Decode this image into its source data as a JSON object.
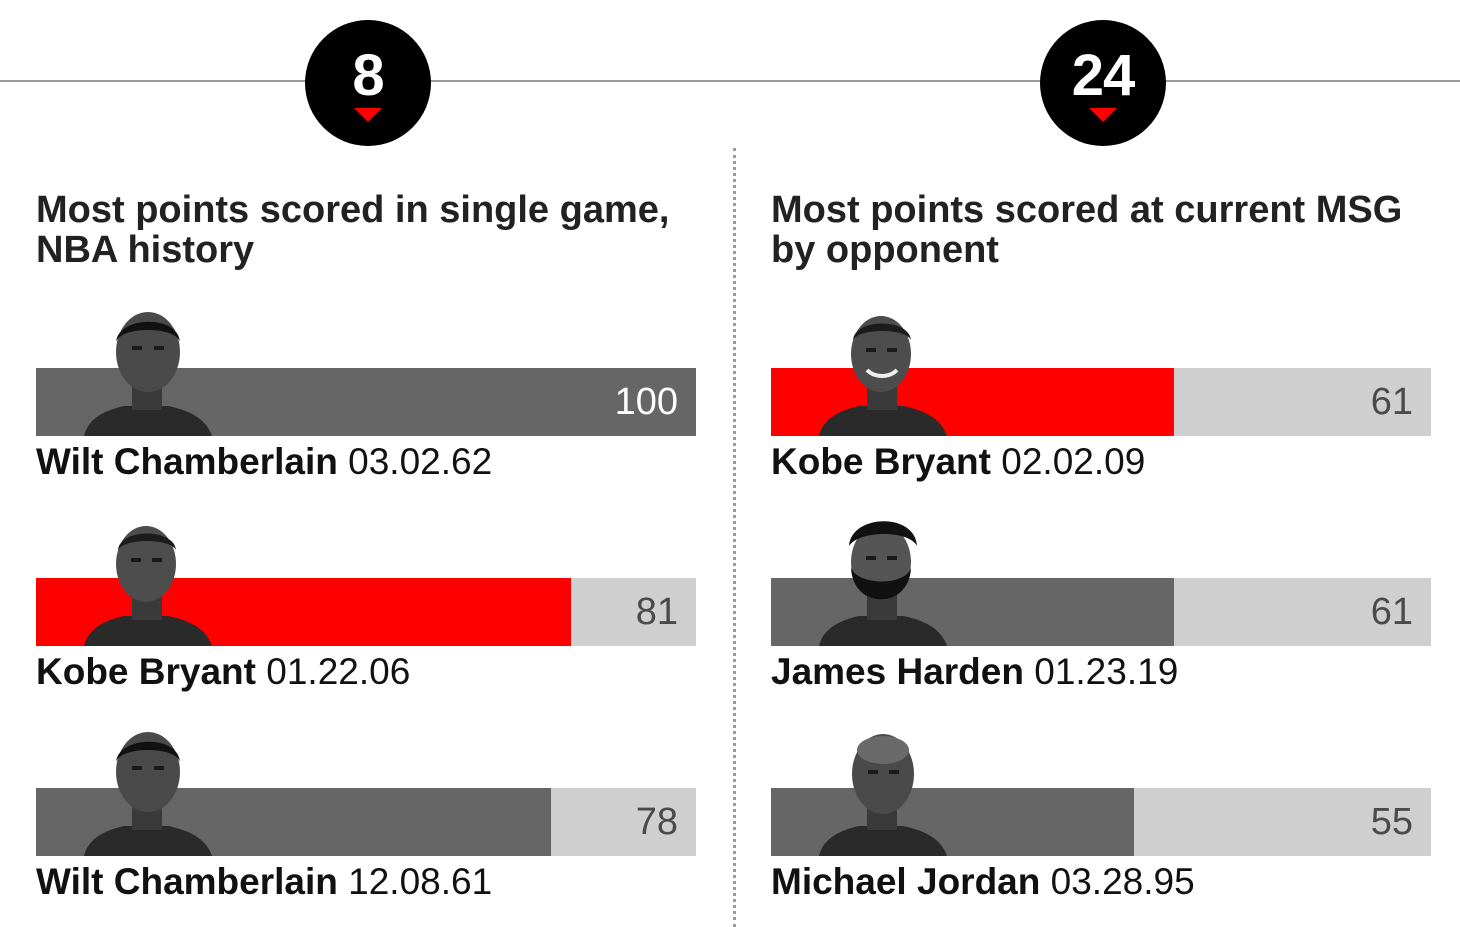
{
  "badges": [
    {
      "number": "8"
    },
    {
      "number": "24"
    }
  ],
  "colors": {
    "highlight": "#ff0000",
    "dark_bar": "#666666",
    "track": "#cfcfcf",
    "badge": "#000000"
  },
  "chart_data": [
    {
      "type": "bar",
      "title": "Most points scored in single game, NBA history",
      "xlim": [
        0,
        100
      ],
      "rows": [
        {
          "name": "Wilt Chamberlain",
          "date": "03.02.62",
          "value": 100,
          "value_label": "100",
          "color": "#666666",
          "photo": "wilt-chamberlain-photo"
        },
        {
          "name": "Kobe Bryant",
          "date": "01.22.06",
          "value": 81,
          "value_label": "81",
          "color": "#ff0000",
          "photo": "kobe-bryant-photo"
        },
        {
          "name": "Wilt Chamberlain",
          "date": "12.08.61",
          "value": 78,
          "value_label": "78",
          "color": "#666666",
          "photo": "wilt-chamberlain-photo"
        }
      ]
    },
    {
      "type": "bar",
      "title": "Most points scored at current MSG by opponent",
      "xlim": [
        0,
        100
      ],
      "rows": [
        {
          "name": "Kobe Bryant",
          "date": "02.02.09",
          "value": 61,
          "value_label": "61",
          "color": "#ff0000",
          "photo": "kobe-bryant-photo"
        },
        {
          "name": "James Harden",
          "date": "01.23.19",
          "value": 61,
          "value_label": "61",
          "color": "#666666",
          "photo": "james-harden-photo"
        },
        {
          "name": "Michael Jordan",
          "date": "03.28.95",
          "value": 55,
          "value_label": "55",
          "color": "#666666",
          "photo": "michael-jordan-photo"
        }
      ]
    }
  ]
}
